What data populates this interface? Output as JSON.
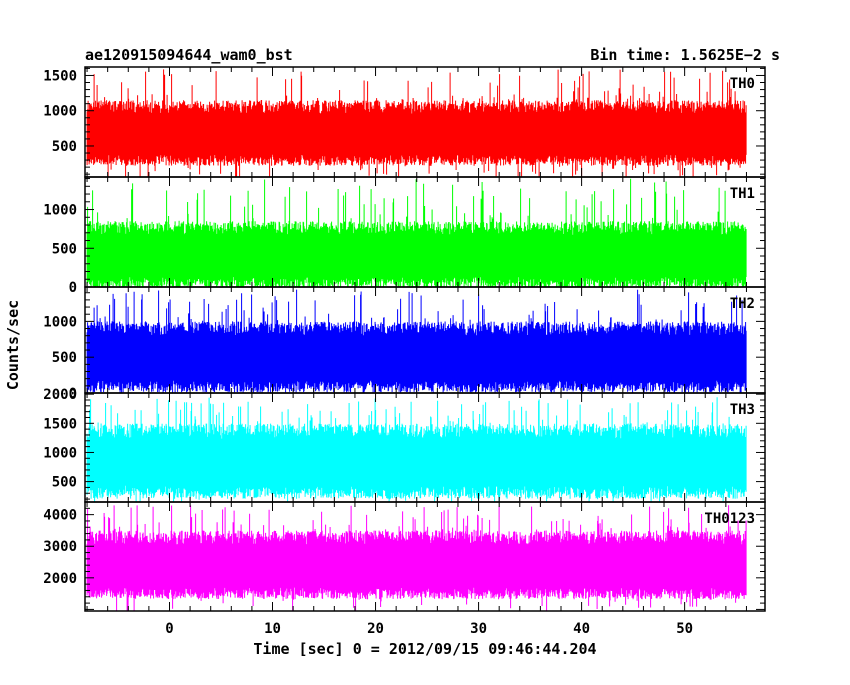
{
  "header": {
    "left_title": "ae120915094644_wam0_bst",
    "right_title": "Bin time: 1.5625E−2 s"
  },
  "axes": {
    "ylabel": "Counts/sec",
    "xlabel": "Time [sec] 0 = 2012/09/15 09:46:44.204"
  },
  "chart_data": {
    "type": "line",
    "x_range": [
      -8,
      56
    ],
    "xlim": [
      -8.2,
      57.8
    ],
    "x_ticks": [
      0,
      10,
      20,
      30,
      40,
      50
    ],
    "x_tick_labels": [
      "0",
      "10",
      "20",
      "30",
      "40",
      "50"
    ],
    "panels": [
      {
        "label": "TH0",
        "color": "#ff0000",
        "ylim": [
          60,
          1620
        ],
        "y_ticks": [
          500,
          1000,
          1500
        ],
        "y_tick_labels": [
          "500",
          "1000",
          "1500"
        ],
        "typical_min": 380,
        "typical_max": 1150,
        "peak_max": 1600
      },
      {
        "label": "TH1",
        "color": "#00ff00",
        "ylim": [
          0,
          1420
        ],
        "y_ticks": [
          0,
          500,
          1000
        ],
        "y_tick_labels": [
          "0",
          "500",
          "1000"
        ],
        "typical_min": 130,
        "typical_max": 850,
        "peak_max": 1400
      },
      {
        "label": "TH2",
        "color": "#0000ff",
        "ylim": [
          0,
          1480
        ],
        "y_ticks": [
          0,
          500,
          1000
        ],
        "y_tick_labels": [
          "0",
          "500",
          "1000"
        ],
        "typical_min": 180,
        "typical_max": 1000,
        "peak_max": 1450
      },
      {
        "label": "TH3",
        "color": "#00ffff",
        "ylim": [
          150,
          2020
        ],
        "y_ticks": [
          500,
          1000,
          1500,
          2000
        ],
        "y_tick_labels": [
          "500",
          "1000",
          "1500",
          "2000"
        ],
        "typical_min": 430,
        "typical_max": 1500,
        "peak_max": 1950
      },
      {
        "label": "TH0123",
        "color": "#ff00ff",
        "ylim": [
          950,
          4400
        ],
        "y_ticks": [
          2000,
          3000,
          4000
        ],
        "y_tick_labels": [
          "2000",
          "3000",
          "4000"
        ],
        "typical_min": 1700,
        "typical_max": 3500,
        "peak_max": 4300
      }
    ]
  }
}
